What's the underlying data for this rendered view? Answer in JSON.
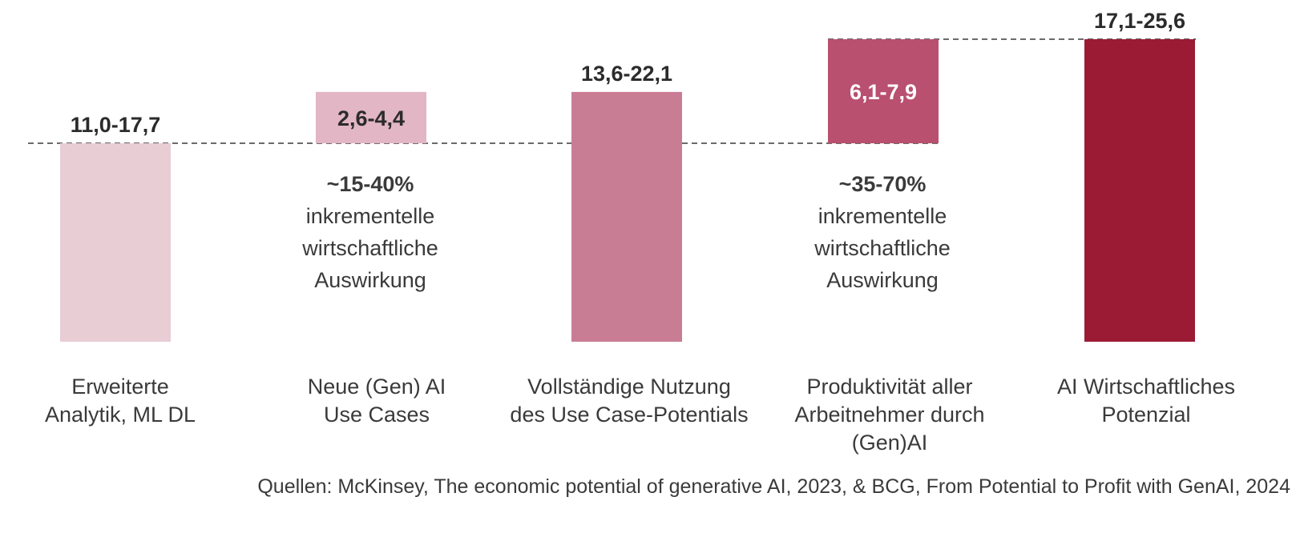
{
  "chart_data": {
    "type": "waterfall",
    "categories": [
      "Erweiterte\nAnalytik, ML DL",
      "Neue (Gen) AI\nUse Cases",
      "Vollständige Nutzung\ndes Use Case-Potentials",
      "Produktivität aller\nArbeitnehmer durch\n(Gen)AI",
      "AI Wirtschaftliches\nPotenzial"
    ],
    "value_labels": [
      "11,0-17,7",
      "2,6-4,4",
      "13,6-22,1",
      "6,1-7,9",
      "17,1-25,6"
    ],
    "bars": [
      {
        "kind": "total",
        "start": 0,
        "end": 14.3,
        "color": "#e8cdd5"
      },
      {
        "kind": "increment",
        "start": 14.3,
        "end": 18.0,
        "color": "#e2b6c4"
      },
      {
        "kind": "total",
        "start": 0,
        "end": 18.0,
        "color": "#c97d95"
      },
      {
        "kind": "increment",
        "start": 14.3,
        "end": 21.8,
        "color": "#b9506f"
      },
      {
        "kind": "total",
        "start": 0,
        "end": 21.8,
        "color": "#9b1b35"
      }
    ],
    "ylim": [
      0,
      21.8
    ],
    "annotations": [
      {
        "percent": "~15-40%",
        "text": [
          "inkrementelle",
          "wirtschaftliche",
          "Auswirkung"
        ]
      },
      {
        "percent": "~35-70%",
        "text": [
          "inkrementelle",
          "wirtschaftliche",
          "Auswirkung"
        ]
      }
    ]
  },
  "source": "Quellen: McKinsey, The economic potential of generative AI, 2023, & BCG, From Potential to Profit with GenAI, 2024"
}
